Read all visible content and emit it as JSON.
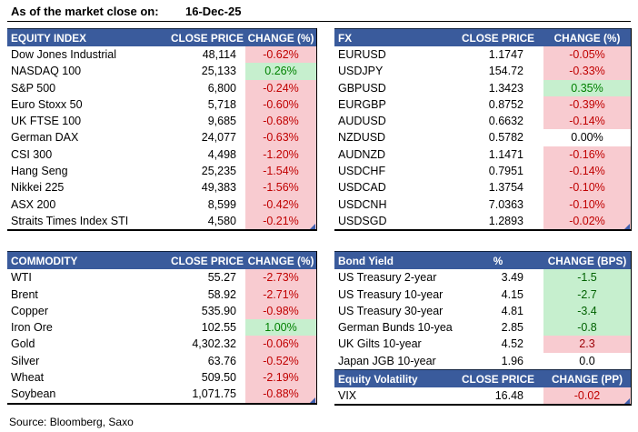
{
  "meta": {
    "as_of_label": "As of the market close on:",
    "as_of_date": "16-Dec-25",
    "source": "Source: Bloomberg, Saxo"
  },
  "colors": {
    "header_bg": "#3a5b9c",
    "header_text": "#ffffff",
    "neg_bg": "#f8cbd0",
    "neg_text": "#c00000",
    "pos_bg": "#c6efce",
    "pos_text": "#008000",
    "good_text": "#006100",
    "bad_text": "#9c0006",
    "corner_mark": "#3e5fad"
  },
  "tables": {
    "equity_index": {
      "headers": [
        "EQUITY INDEX",
        "CLOSE PRICE",
        "CHANGE (%)"
      ],
      "rows": [
        {
          "name": "Dow Jones Industrial",
          "price": "48,114",
          "change": "-0.62%",
          "state": "neg"
        },
        {
          "name": "NASDAQ 100",
          "price": "25,133",
          "change": "0.26%",
          "state": "pos"
        },
        {
          "name": "S&P 500",
          "price": "6,800",
          "change": "-0.24%",
          "state": "neg"
        },
        {
          "name": "Euro Stoxx 50",
          "price": "5,718",
          "change": "-0.60%",
          "state": "neg"
        },
        {
          "name": "UK FTSE 100",
          "price": "9,685",
          "change": "-0.68%",
          "state": "neg"
        },
        {
          "name": "German DAX",
          "price": "24,077",
          "change": "-0.63%",
          "state": "neg"
        },
        {
          "name": "CSI 300",
          "price": "4,498",
          "change": "-1.20%",
          "state": "neg"
        },
        {
          "name": "Hang Seng",
          "price": "25,235",
          "change": "-1.54%",
          "state": "neg"
        },
        {
          "name": "Nikkei 225",
          "price": "49,383",
          "change": "-1.56%",
          "state": "neg"
        },
        {
          "name": "ASX 200",
          "price": "8,599",
          "change": "-0.42%",
          "state": "neg"
        },
        {
          "name": "Straits Times Index STI",
          "price": "4,580",
          "change": "-0.21%",
          "state": "neg"
        }
      ]
    },
    "fx": {
      "headers": [
        "FX",
        "CLOSE PRICE",
        "CHANGE (%)"
      ],
      "rows": [
        {
          "name": "EURUSD",
          "price": "1.1747",
          "change": "-0.05%",
          "state": "neg"
        },
        {
          "name": "USDJPY",
          "price": "154.72",
          "change": "-0.33%",
          "state": "neg"
        },
        {
          "name": "GBPUSD",
          "price": "1.3423",
          "change": "0.35%",
          "state": "pos"
        },
        {
          "name": "EURGBP",
          "price": "0.8752",
          "change": "-0.39%",
          "state": "neg"
        },
        {
          "name": "AUDUSD",
          "price": "0.6632",
          "change": "-0.14%",
          "state": "neg"
        },
        {
          "name": "NZDUSD",
          "price": "0.5782",
          "change": "0.00%",
          "state": "flat"
        },
        {
          "name": "AUDNZD",
          "price": "1.1471",
          "change": "-0.16%",
          "state": "neg"
        },
        {
          "name": "USDCHF",
          "price": "0.7951",
          "change": "-0.14%",
          "state": "neg"
        },
        {
          "name": "USDCAD",
          "price": "1.3754",
          "change": "-0.10%",
          "state": "neg"
        },
        {
          "name": "USDCNH",
          "price": "7.0363",
          "change": "-0.10%",
          "state": "neg"
        },
        {
          "name": "USDSGD",
          "price": "1.2893",
          "change": "-0.02%",
          "state": "neg"
        }
      ]
    },
    "commodity": {
      "headers": [
        "COMMODITY",
        "CLOSE PRICE",
        "CHANGE (%)"
      ],
      "rows": [
        {
          "name": "WTI",
          "price": "55.27",
          "change": "-2.73%",
          "state": "neg"
        },
        {
          "name": "Brent",
          "price": "58.92",
          "change": "-2.71%",
          "state": "neg"
        },
        {
          "name": "Copper",
          "price": "535.90",
          "change": "-0.98%",
          "state": "neg"
        },
        {
          "name": "Iron Ore",
          "price": "102.55",
          "change": "1.00%",
          "state": "pos"
        },
        {
          "name": "Gold",
          "price": "4,302.32",
          "change": "-0.06%",
          "state": "neg"
        },
        {
          "name": "Silver",
          "price": "63.76",
          "change": "-0.52%",
          "state": "neg"
        },
        {
          "name": "Wheat",
          "price": "509.50",
          "change": "-2.19%",
          "state": "neg"
        },
        {
          "name": "Soybean",
          "price": "1,071.75",
          "change": "-0.88%",
          "state": "neg"
        }
      ]
    },
    "bond_yield": {
      "headers": [
        "Bond Yield",
        "%",
        "CHANGE (BPS)"
      ],
      "rows": [
        {
          "name": "US Treasury 2-year",
          "price": "3.49",
          "change": "-1.5",
          "state": "good"
        },
        {
          "name": "US Treasury 10-year",
          "price": "4.15",
          "change": "-2.7",
          "state": "good"
        },
        {
          "name": "US Treasury 30-year",
          "price": "4.81",
          "change": "-3.4",
          "state": "good"
        },
        {
          "name": "German Bunds 10-year",
          "price": "2.85",
          "change": "-0.8",
          "state": "good"
        },
        {
          "name": "UK Gilts 10-year",
          "price": "4.52",
          "change": "2.3",
          "state": "bad"
        },
        {
          "name": "Japan JGB 10-year",
          "price": "1.96",
          "change": "0.0",
          "state": "flat"
        }
      ]
    },
    "equity_volatility": {
      "headers": [
        "Equity Volatility",
        "CLOSE PRICE",
        "CHANGE (PP)"
      ],
      "rows": [
        {
          "name": "VIX",
          "price": "16.48",
          "change": "-0.02",
          "state": "neg"
        }
      ]
    }
  }
}
